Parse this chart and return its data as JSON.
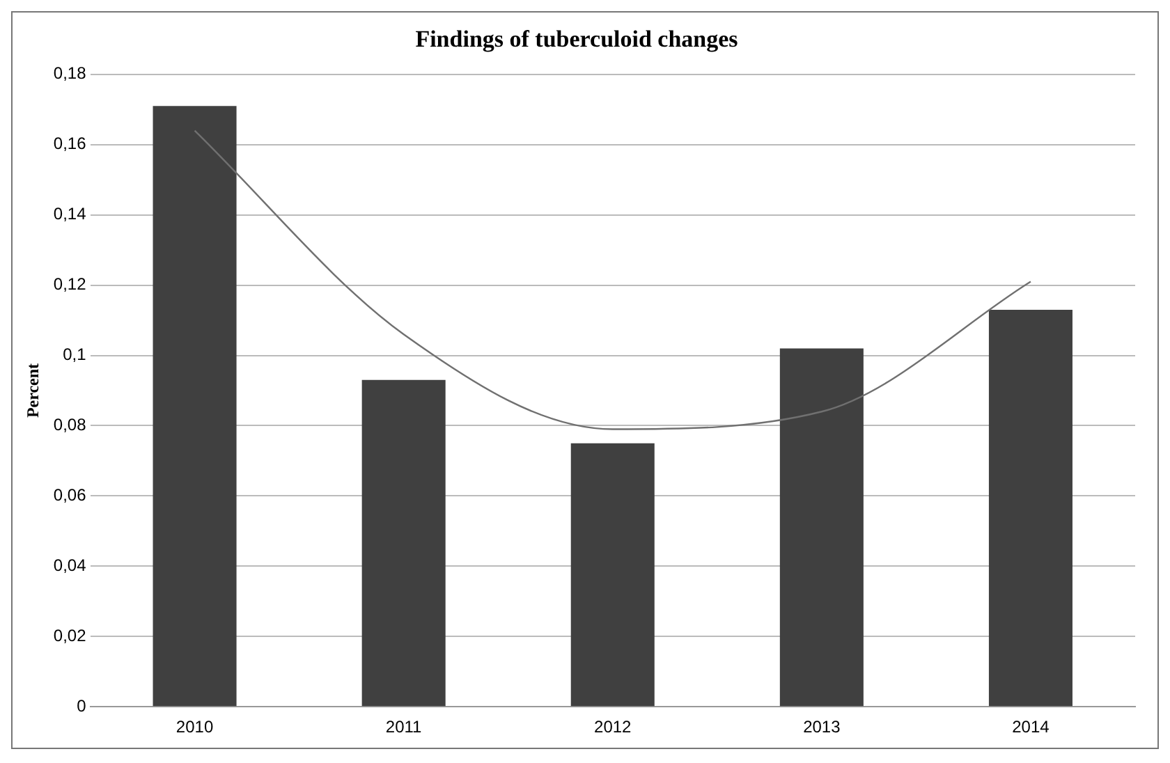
{
  "chart_data": {
    "type": "bar",
    "title": "Findings of tuberculoid changes",
    "ylabel": "Percent",
    "categories": [
      "2010",
      "2011",
      "2012",
      "2013",
      "2014"
    ],
    "series": [
      {
        "color": "#404040",
        "values": [
          0.171,
          0.093,
          0.075,
          0.102,
          0.113
        ]
      },
      {
        "type": "line",
        "color": "#707070",
        "values": [
          0.164,
          0.106,
          0.079,
          0.084,
          0.121
        ]
      }
    ],
    "ylim": [
      0,
      0.18
    ],
    "yticks": [
      {
        "value": 0,
        "label": "0"
      },
      {
        "value": 0.02,
        "label": "0,02"
      },
      {
        "value": 0.04,
        "label": "0,04"
      },
      {
        "value": 0.06,
        "label": "0,06"
      },
      {
        "value": 0.08,
        "label": "0,08"
      },
      {
        "value": 0.1,
        "label": "0,1"
      },
      {
        "value": 0.12,
        "label": "0,12"
      },
      {
        "value": 0.14,
        "label": "0,14"
      },
      {
        "value": 0.16,
        "label": "0,16"
      },
      {
        "value": 0.18,
        "label": "0,18"
      }
    ],
    "grid": "y",
    "legend": false,
    "marker": "none",
    "line_style": "solid"
  }
}
